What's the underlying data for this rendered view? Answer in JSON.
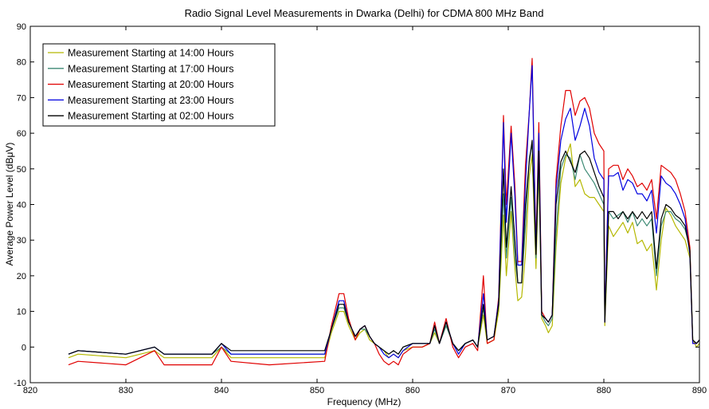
{
  "chart_data": {
    "type": "line",
    "title": "Radio Signal Level Measurements in Dwarka (Delhi) for CDMA 800 MHz Band",
    "xlabel": "Frequency (MHz)",
    "ylabel": "Average Power Level (dBμV)",
    "xlim": [
      820,
      890
    ],
    "ylim": [
      -10,
      90
    ],
    "xticks": [
      820,
      830,
      840,
      850,
      860,
      870,
      880,
      890
    ],
    "yticks": [
      -10,
      0,
      10,
      20,
      30,
      40,
      50,
      60,
      70,
      80,
      90
    ],
    "grid": false,
    "legend_position": "top-left",
    "series": [
      {
        "name": "Measurement Starting at 14:00 Hours",
        "color": "#b5b800",
        "x": [
          824,
          825,
          830,
          833,
          834,
          839,
          840,
          841,
          845,
          850.8,
          851.5,
          852.3,
          852.8,
          853.3,
          854,
          854.5,
          855,
          855.5,
          856,
          856.5,
          857,
          857.5,
          858,
          858.5,
          859,
          860,
          861,
          861.8,
          862.3,
          862.8,
          863.5,
          864.2,
          864.8,
          865.5,
          866.3,
          866.8,
          867.4,
          867.8,
          868.5,
          869,
          869.5,
          869.8,
          870.3,
          870.7,
          871,
          871.4,
          871.8,
          872.2,
          872.5,
          872.9,
          873.2,
          873.5,
          873.9,
          874.2,
          874.6,
          875,
          875.5,
          876,
          876.5,
          877,
          877.5,
          878,
          878.5,
          879,
          879.5,
          880,
          880.1,
          880.5,
          881,
          881.5,
          882,
          882.5,
          883,
          883.5,
          884,
          884.5,
          885,
          885.5,
          886,
          886.5,
          887,
          887.5,
          888,
          888.5,
          889,
          889.3,
          889.7,
          890
        ],
        "y": [
          -3,
          -2,
          -3,
          -1,
          -3,
          -3,
          0,
          -3,
          -3,
          -3,
          4,
          10,
          10,
          6,
          2,
          4,
          5,
          2,
          1,
          0,
          -1,
          -3,
          -2,
          -3,
          -1,
          0,
          0,
          1,
          4,
          1,
          6,
          1,
          -1,
          1,
          2,
          0,
          9,
          1,
          2,
          10,
          37,
          20,
          38,
          22,
          13,
          14,
          26,
          48,
          54,
          22,
          50,
          8,
          6,
          4,
          6,
          28,
          46,
          53,
          57,
          45,
          47,
          43,
          42,
          42,
          40,
          38,
          6,
          34,
          31,
          33,
          35,
          32,
          35,
          29,
          30,
          27,
          29,
          16,
          30,
          39,
          37,
          34,
          32,
          30,
          25,
          2,
          0,
          1
        ]
      },
      {
        "name": "Measurement Starting at 17:00 Hours",
        "color": "#3d8a74",
        "x": [
          824,
          825,
          830,
          833,
          834,
          839,
          840,
          841,
          845,
          850.8,
          851.5,
          852.3,
          852.8,
          853.3,
          854,
          854.5,
          855,
          855.5,
          856,
          856.5,
          857,
          857.5,
          858,
          858.5,
          859,
          860,
          861,
          861.8,
          862.3,
          862.8,
          863.5,
          864.2,
          864.8,
          865.5,
          866.3,
          866.8,
          867.4,
          867.8,
          868.5,
          869,
          869.5,
          869.8,
          870.3,
          870.7,
          871,
          871.4,
          871.8,
          872.2,
          872.5,
          872.9,
          873.2,
          873.5,
          873.9,
          874.2,
          874.6,
          875,
          875.5,
          876,
          876.5,
          877,
          877.5,
          878,
          878.5,
          879,
          879.5,
          880,
          880.1,
          880.5,
          881,
          881.5,
          882,
          882.5,
          883,
          883.5,
          884,
          884.5,
          885,
          885.5,
          886,
          886.5,
          887,
          887.5,
          888,
          888.5,
          889,
          889.3,
          889.7,
          890
        ],
        "y": [
          -2,
          -1,
          -2,
          0,
          -2,
          -2,
          0,
          -2,
          -2,
          -2,
          5,
          11,
          11,
          7,
          3,
          5,
          5,
          3,
          1,
          0,
          -1,
          -2,
          -1,
          -2,
          0,
          1,
          1,
          1,
          5,
          1,
          6,
          1,
          -1,
          1,
          2,
          0,
          11,
          2,
          3,
          12,
          43,
          25,
          42,
          25,
          18,
          18,
          34,
          53,
          57,
          25,
          53,
          9,
          7,
          6,
          8,
          32,
          50,
          54,
          53,
          47,
          54,
          50,
          48,
          46,
          43,
          40,
          7,
          38,
          36,
          37,
          38,
          35,
          38,
          34,
          36,
          34,
          36,
          20,
          34,
          38,
          38,
          36,
          35,
          33,
          28,
          2,
          1,
          2
        ]
      },
      {
        "name": "Measurement Starting at 20:00 Hours",
        "color": "#e00000",
        "x": [
          824,
          825,
          830,
          833,
          834,
          839,
          840,
          841,
          845,
          850.8,
          851.5,
          852.3,
          852.8,
          853.3,
          854,
          854.5,
          855,
          855.5,
          856,
          856.5,
          857,
          857.5,
          858,
          858.5,
          859,
          860,
          861,
          861.8,
          862.3,
          862.8,
          863.5,
          864.2,
          864.8,
          865.5,
          866.3,
          866.8,
          867.4,
          867.8,
          868.5,
          869,
          869.5,
          869.8,
          870.3,
          870.7,
          871,
          871.4,
          871.8,
          872.2,
          872.5,
          872.9,
          873.2,
          873.5,
          873.9,
          874.2,
          874.6,
          875,
          875.5,
          876,
          876.5,
          877,
          877.5,
          878,
          878.5,
          879,
          879.5,
          880,
          880.1,
          880.5,
          881,
          881.5,
          882,
          882.5,
          883,
          883.5,
          884,
          884.5,
          885,
          885.5,
          886,
          886.5,
          887,
          887.5,
          888,
          888.5,
          889,
          889.3,
          889.7,
          890
        ],
        "y": [
          -5,
          -4,
          -5,
          -1,
          -5,
          -5,
          0,
          -4,
          -5,
          -4,
          6,
          15,
          15,
          8,
          2,
          5,
          6,
          3,
          1,
          -2,
          -4,
          -5,
          -4,
          -5,
          -2,
          0,
          0,
          1,
          7,
          1,
          8,
          0,
          -3,
          0,
          1,
          -1,
          20,
          1,
          2,
          14,
          65,
          40,
          62,
          45,
          24,
          24,
          51,
          66,
          81,
          28,
          63,
          10,
          8,
          7,
          9,
          47,
          62,
          72,
          72,
          65,
          69,
          70,
          67,
          60,
          57,
          55,
          7,
          50,
          51,
          51,
          47,
          50,
          48,
          45,
          46,
          44,
          47,
          36,
          51,
          50,
          49,
          47,
          43,
          38,
          28,
          1,
          1,
          2
        ]
      },
      {
        "name": "Measurement Starting at 23:00 Hours",
        "color": "#0000e0",
        "x": [
          824,
          825,
          830,
          833,
          834,
          839,
          840,
          841,
          845,
          850.8,
          851.5,
          852.3,
          852.8,
          853.3,
          854,
          854.5,
          855,
          855.5,
          856,
          856.5,
          857,
          857.5,
          858,
          858.5,
          859,
          860,
          861,
          861.8,
          862.3,
          862.8,
          863.5,
          864.2,
          864.8,
          865.5,
          866.3,
          866.8,
          867.4,
          867.8,
          868.5,
          869,
          869.5,
          869.8,
          870.3,
          870.7,
          871,
          871.4,
          871.8,
          872.2,
          872.5,
          872.9,
          873.2,
          873.5,
          873.9,
          874.2,
          874.6,
          875,
          875.5,
          876,
          876.5,
          877,
          877.5,
          878,
          878.5,
          879,
          879.5,
          880,
          880.1,
          880.5,
          881,
          881.5,
          882,
          882.5,
          883,
          883.5,
          884,
          884.5,
          885,
          885.5,
          886,
          886.5,
          887,
          887.5,
          888,
          888.5,
          889,
          889.3,
          889.7,
          890
        ],
        "y": [
          -2,
          -1,
          -2,
          0,
          -2,
          -2,
          1,
          -2,
          -2,
          -2,
          5,
          13,
          13,
          7,
          3,
          5,
          6,
          3,
          1,
          0,
          -2,
          -3,
          -2,
          -3,
          -1,
          1,
          1,
          1,
          6,
          1,
          7,
          1,
          -2,
          1,
          2,
          0,
          15,
          2,
          3,
          13,
          63,
          35,
          60,
          42,
          23,
          23,
          46,
          66,
          79,
          26,
          60,
          9,
          8,
          7,
          9,
          44,
          58,
          64,
          67,
          58,
          62,
          67,
          62,
          53,
          49,
          47,
          7,
          48,
          48,
          49,
          44,
          47,
          46,
          43,
          43,
          41,
          44,
          32,
          48,
          46,
          45,
          43,
          40,
          36,
          26,
          1,
          1,
          2
        ]
      },
      {
        "name": "Measurement Starting at 02:00 Hours",
        "color": "#000000",
        "x": [
          824,
          825,
          830,
          833,
          834,
          839,
          840,
          841,
          845,
          850.8,
          851.5,
          852.3,
          852.8,
          853.3,
          854,
          854.5,
          855,
          855.5,
          856,
          856.5,
          857,
          857.5,
          858,
          858.5,
          859,
          860,
          861,
          861.8,
          862.3,
          862.8,
          863.5,
          864.2,
          864.8,
          865.5,
          866.3,
          866.8,
          867.4,
          867.8,
          868.5,
          869,
          869.5,
          869.8,
          870.3,
          870.7,
          871,
          871.4,
          871.8,
          872.2,
          872.5,
          872.9,
          873.2,
          873.5,
          873.9,
          874.2,
          874.6,
          875,
          875.5,
          876,
          876.5,
          877,
          877.5,
          878,
          878.5,
          879,
          879.5,
          880,
          880.1,
          880.5,
          881,
          881.5,
          882,
          882.5,
          883,
          883.5,
          884,
          884.5,
          885,
          885.5,
          886,
          886.5,
          887,
          887.5,
          888,
          888.5,
          889,
          889.3,
          889.7,
          890
        ],
        "y": [
          -2,
          -1,
          -2,
          0,
          -2,
          -2,
          1,
          -1,
          -1,
          -1,
          5,
          12,
          12,
          7,
          3,
          5,
          6,
          3,
          1,
          0,
          -1,
          -2,
          -1,
          -2,
          0,
          1,
          1,
          1,
          6,
          1,
          7,
          1,
          -1,
          1,
          2,
          0,
          12,
          2,
          3,
          12,
          50,
          28,
          45,
          30,
          18,
          18,
          40,
          52,
          58,
          26,
          55,
          9,
          8,
          7,
          9,
          40,
          52,
          55,
          52,
          49,
          54,
          55,
          53,
          49,
          45,
          42,
          7,
          38,
          38,
          36,
          38,
          36,
          38,
          36,
          38,
          36,
          38,
          22,
          36,
          40,
          39,
          37,
          36,
          34,
          27,
          2,
          1,
          2
        ]
      }
    ]
  }
}
